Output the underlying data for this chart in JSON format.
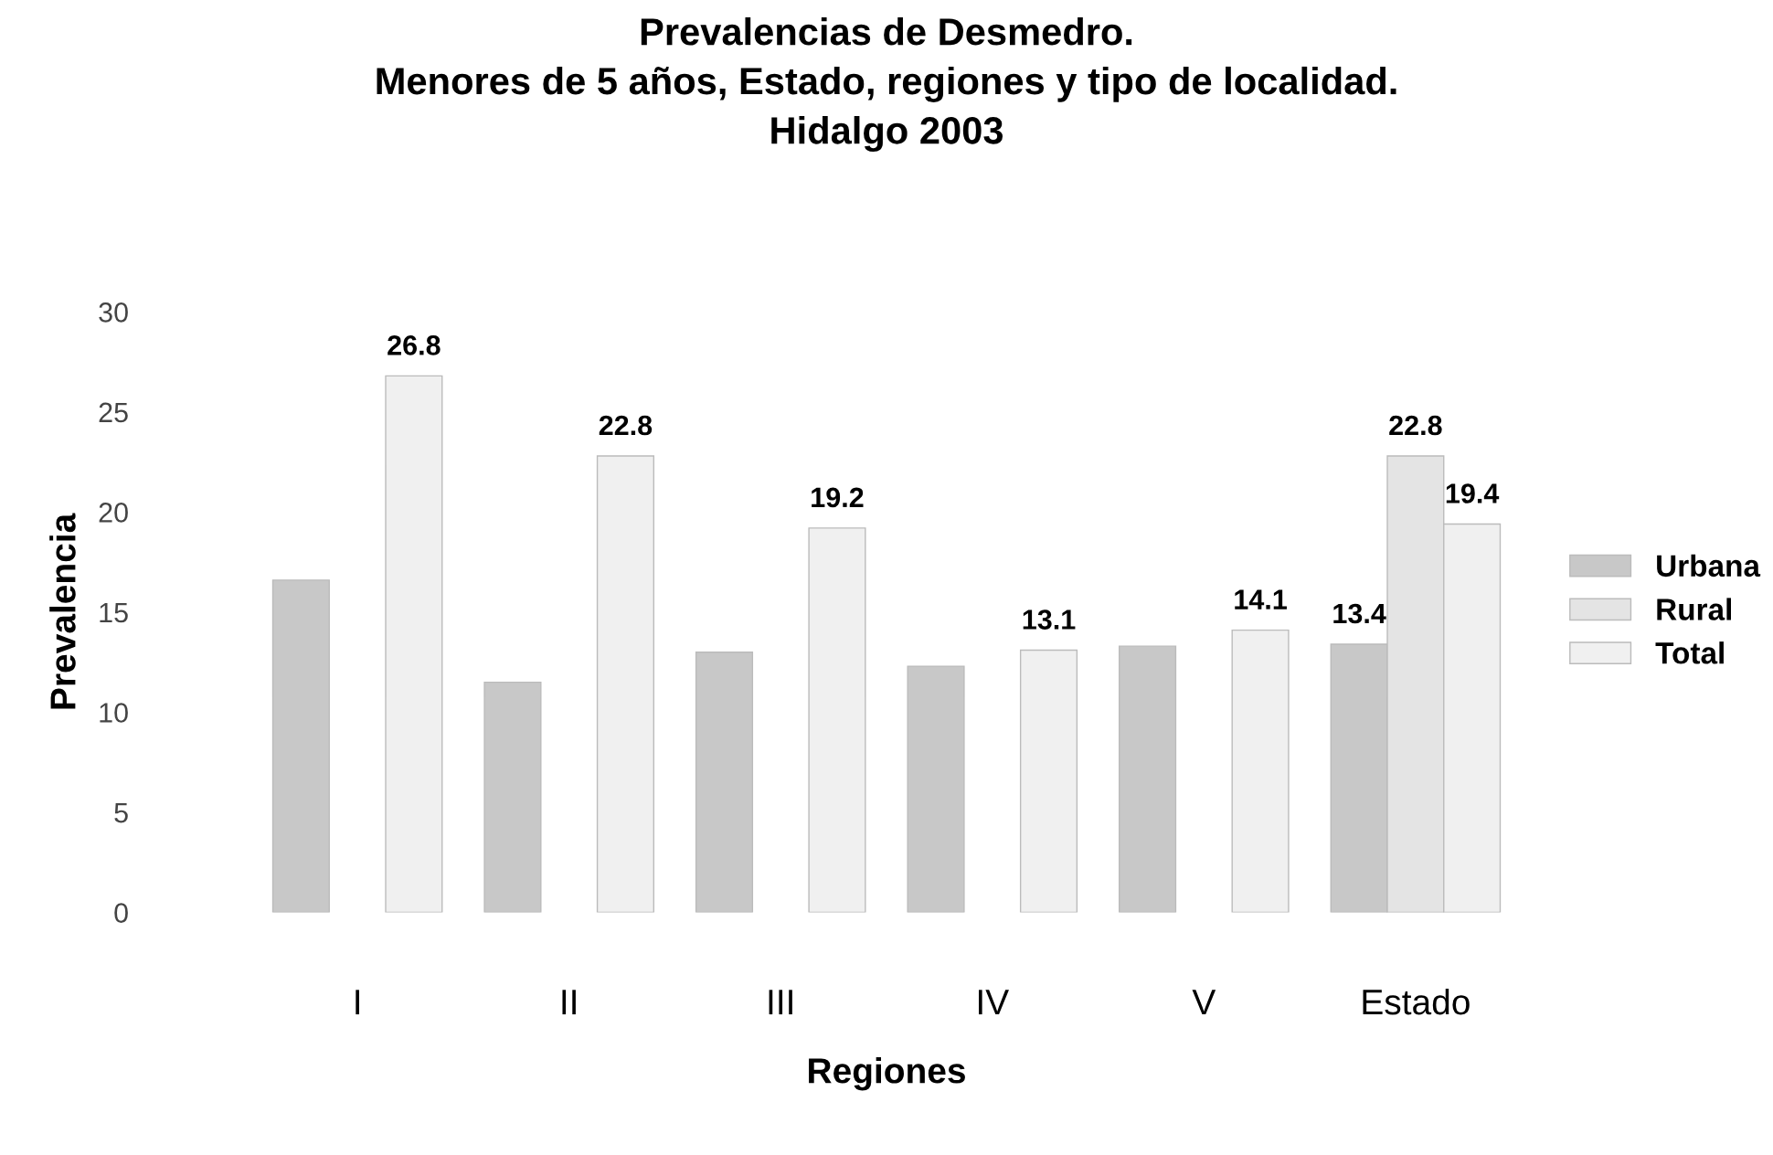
{
  "chart_data": {
    "type": "bar",
    "title": "Prevalencias de Desmedro.\nMenores de 5 años, Estado, regiones y tipo de localidad.\nHidalgo 2003",
    "xlabel": "Regiones",
    "ylabel": "Prevalencia",
    "categories": [
      "I",
      "II",
      "III",
      "IV",
      "V",
      "Estado"
    ],
    "series": [
      {
        "name": "Urbana",
        "color": "#c8c8c8",
        "values": [
          16.6,
          11.5,
          13.0,
          12.3,
          13.3,
          13.4
        ],
        "value_labels": [
          null,
          null,
          null,
          null,
          null,
          "13.4"
        ]
      },
      {
        "name": "Rural",
        "color": "#e4e4e4",
        "values": [
          null,
          null,
          null,
          null,
          null,
          22.8
        ],
        "value_labels": [
          null,
          null,
          null,
          null,
          null,
          "22.8"
        ]
      },
      {
        "name": "Total",
        "color": "#f0f0f0",
        "values": [
          26.8,
          22.8,
          19.2,
          13.1,
          14.1,
          19.4
        ],
        "value_labels": [
          "26.8",
          "22.8",
          "19.2",
          "13.1",
          "14.1",
          "19.4"
        ]
      }
    ],
    "ylim": [
      0,
      30
    ],
    "yticks": [
      0,
      5,
      10,
      15,
      20,
      25,
      30
    ],
    "grid": false,
    "legend": "right"
  }
}
